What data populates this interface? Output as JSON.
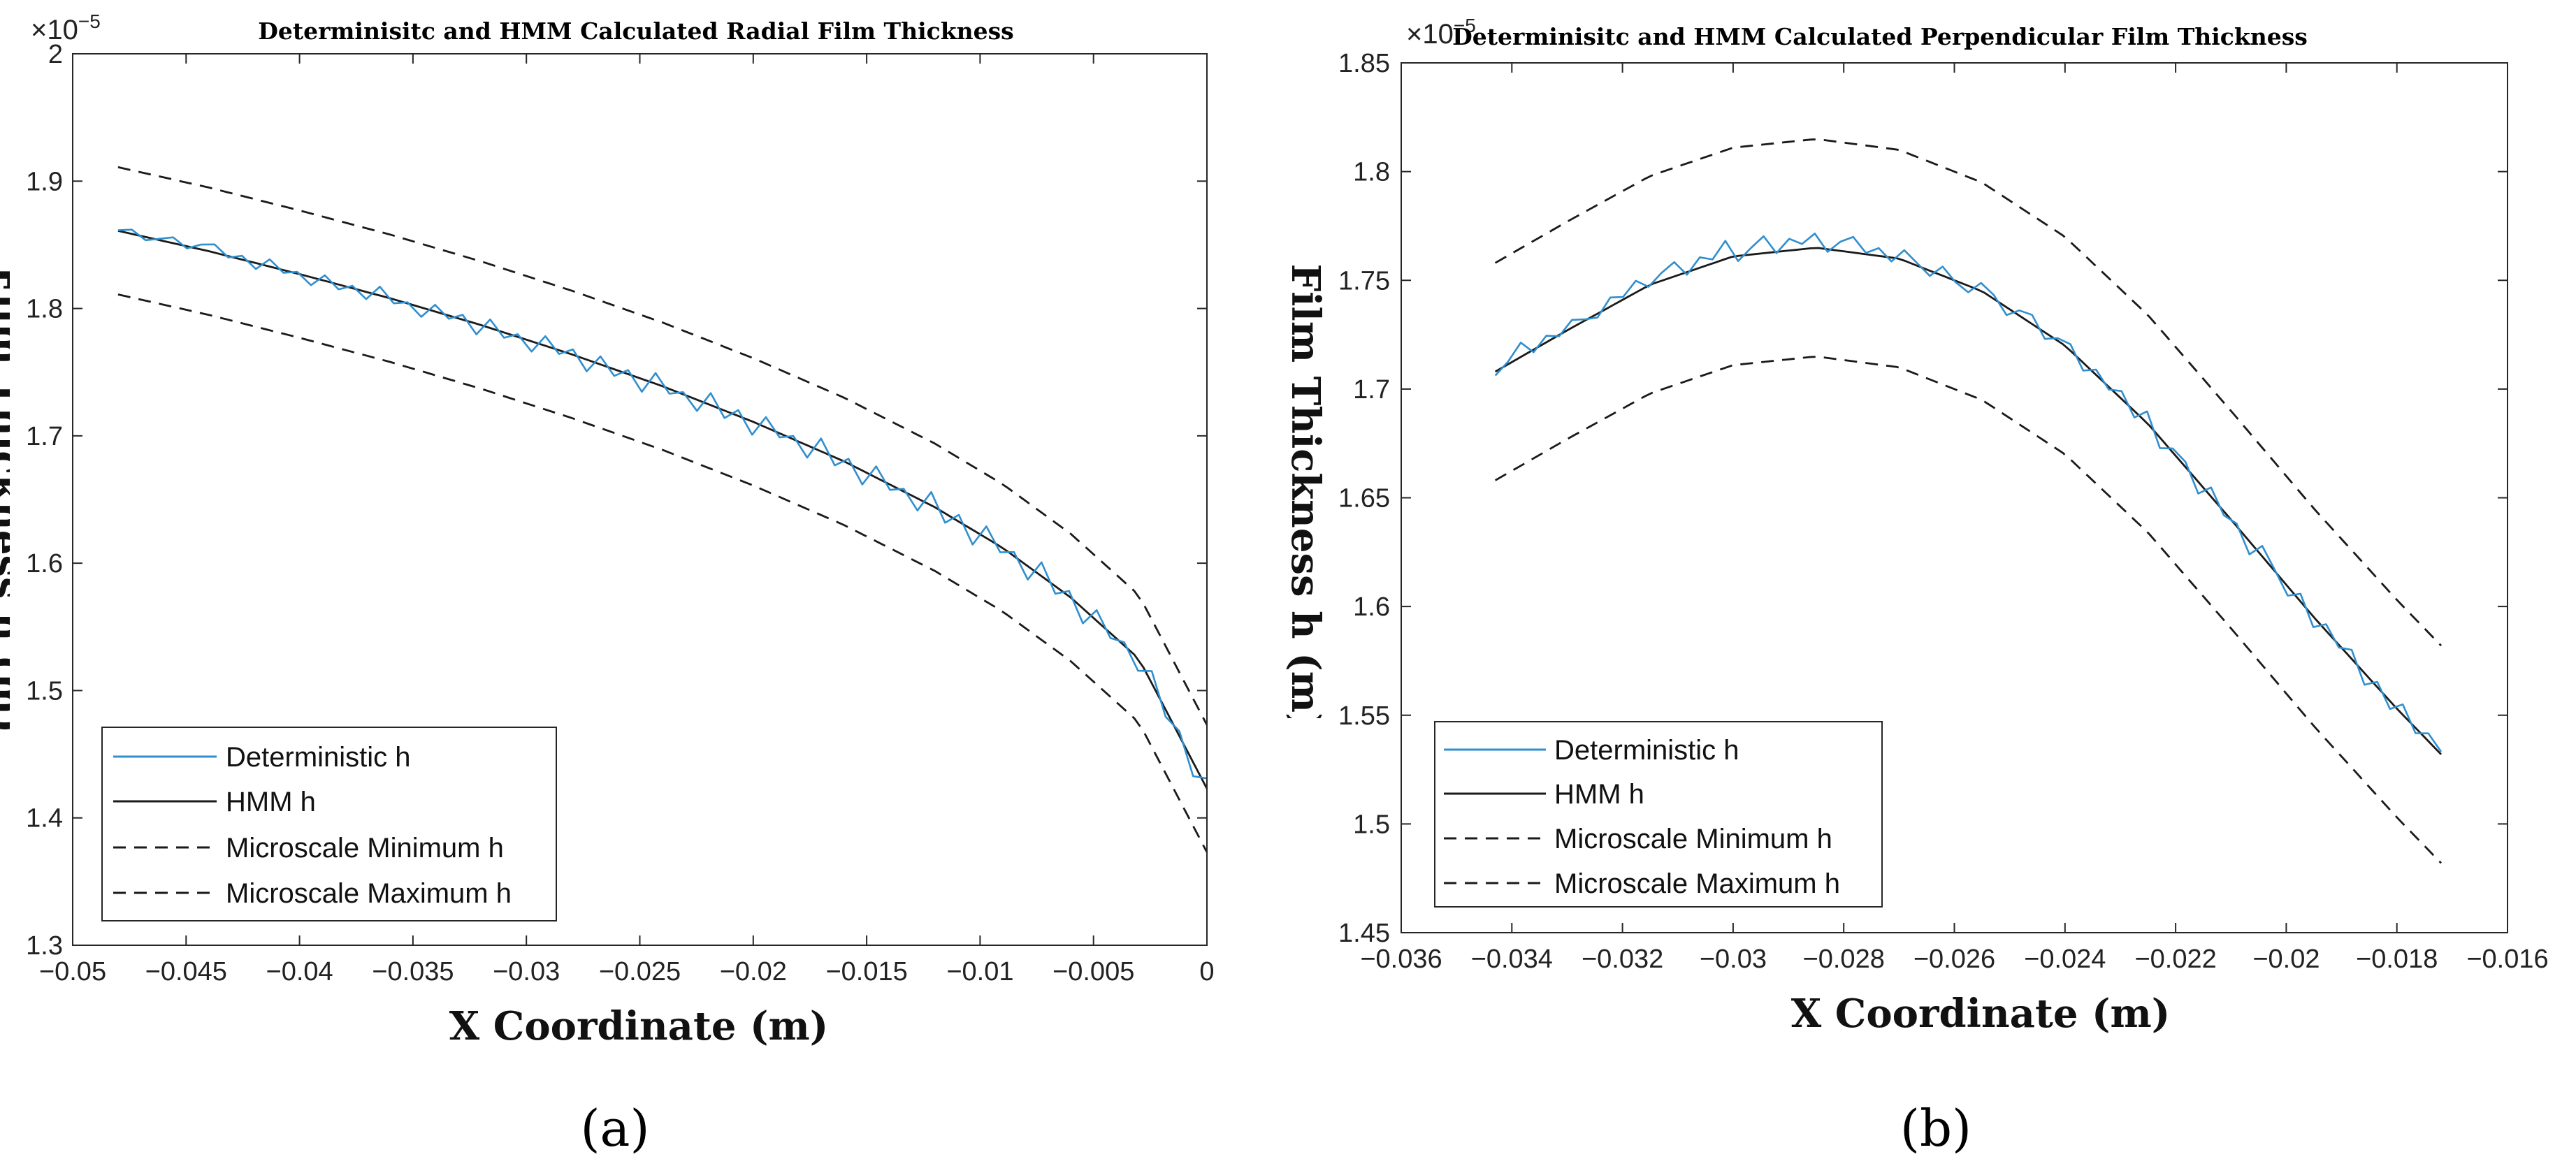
{
  "chart_data": [
    {
      "type": "line",
      "panel_label": "(a)",
      "title": "Determinisitc and HMM Calculated Radial Film Thickness",
      "xlabel": "X Coordinate (m)",
      "ylabel": "Film Thickness h (m)",
      "xlim": [
        -0.05,
        0
      ],
      "ylim": [
        1.3e-05,
        2e-05
      ],
      "y_exponent_label": "×10",
      "y_exponent_power": "−5",
      "xticks": [
        -0.05,
        -0.045,
        -0.04,
        -0.035,
        -0.03,
        -0.025,
        -0.02,
        -0.015,
        -0.01,
        -0.005,
        0
      ],
      "xtick_labels": [
        "−0.05",
        "−0.045",
        "−0.04",
        "−0.035",
        "−0.03",
        "−0.025",
        "−0.02",
        "−0.015",
        "−0.01",
        "−0.005",
        "0"
      ],
      "yticks": [
        1.3e-05,
        1.4e-05,
        1.5e-05,
        1.6e-05,
        1.7e-05,
        1.8e-05,
        1.9e-05,
        2e-05
      ],
      "ytick_labels": [
        "1.3",
        "1.4",
        "1.5",
        "1.6",
        "1.7",
        "1.8",
        "1.9",
        "2"
      ],
      "legend_position": "bottom-left",
      "series": [
        {
          "name": "Deterministic h",
          "color": "#2f8fcf",
          "style": "solid",
          "oscillating": true,
          "ref": "HMM h",
          "noise": [
            0.02,
            0.16,
            -0.12,
            0.05,
            0.22,
            -0.08,
            0.18,
            0.31,
            -0.05,
            0.14,
            -0.22,
            0.27,
            -0.1,
            0.06,
            -0.3,
            0.21,
            -0.18,
            0.09,
            -0.27,
            0.33,
            -0.15,
            0.04,
            -0.35,
            0.25,
            -0.12,
            0.18,
            -0.4,
            0.32,
            -0.2,
            0.1,
            -0.38,
            0.36,
            -0.14,
            0.2,
            -0.44,
            0.3,
            -0.25,
            0.15,
            -0.48,
            0.4,
            -0.18,
            0.08,
            -0.42,
            0.45,
            -0.28,
            0.22,
            -0.5,
            0.38,
            -0.15,
            0.12,
            -0.46,
            0.48,
            -0.3,
            0.18,
            -0.52,
            0.42,
            -0.2,
            0.1,
            -0.45,
            0.5,
            -0.35,
            0.25,
            -0.55,
            0.44,
            -0.22,
            0.15,
            -0.5,
            0.52,
            -0.28,
            0.2,
            -0.56,
            0.4,
            -0.18,
            0.12,
            -0.48,
            0.46,
            -0.26,
            0.18,
            -0.52,
            0.38
          ]
        },
        {
          "name": "HMM h",
          "color": "#1a1a1a",
          "style": "solid",
          "x": [
            -0.048,
            -0.044,
            -0.04,
            -0.036,
            -0.032,
            -0.028,
            -0.024,
            -0.02,
            -0.016,
            -0.012,
            -0.009,
            -0.006,
            -0.003,
            0.0
          ],
          "y": [
            1.861e-05,
            1.845e-05,
            1.827e-05,
            1.808e-05,
            1.787e-05,
            1.764e-05,
            1.739e-05,
            1.711e-05,
            1.68e-05,
            1.644e-05,
            1.612e-05,
            1.573e-05,
            1.525e-05,
            1.423e-05
          ]
        },
        {
          "name": "Microscale Minimum h",
          "color": "#1a1a1a",
          "style": "dashed",
          "x": [
            -0.048,
            -0.044,
            -0.04,
            -0.036,
            -0.032,
            -0.028,
            -0.024,
            -0.02,
            -0.016,
            -0.012,
            -0.009,
            -0.006,
            -0.003,
            0.0
          ],
          "y": [
            1.811e-05,
            1.795e-05,
            1.777e-05,
            1.758e-05,
            1.737e-05,
            1.714e-05,
            1.689e-05,
            1.661e-05,
            1.63e-05,
            1.594e-05,
            1.562e-05,
            1.523e-05,
            1.475e-05,
            1.373e-05
          ]
        },
        {
          "name": "Microscale Maximum h",
          "color": "#1a1a1a",
          "style": "dashed",
          "x": [
            -0.048,
            -0.044,
            -0.04,
            -0.036,
            -0.032,
            -0.028,
            -0.024,
            -0.02,
            -0.016,
            -0.012,
            -0.009,
            -0.006,
            -0.003,
            0.0
          ],
          "y": [
            1.911e-05,
            1.895e-05,
            1.877e-05,
            1.858e-05,
            1.837e-05,
            1.814e-05,
            1.789e-05,
            1.761e-05,
            1.73e-05,
            1.694e-05,
            1.662e-05,
            1.623e-05,
            1.575e-05,
            1.473e-05
          ]
        }
      ]
    },
    {
      "type": "line",
      "panel_label": "(b)",
      "title": "Determinisitc and HMM Calculated Perpendicular Film Thickness",
      "xlabel": "X Coordinate (m)",
      "ylabel": "Film Thickness h (m)",
      "xlim": [
        -0.036,
        -0.016
      ],
      "ylim": [
        1.45e-05,
        1.85e-05
      ],
      "y_exponent_label": "×10",
      "y_exponent_power": "−5",
      "xticks": [
        -0.036,
        -0.034,
        -0.032,
        -0.03,
        -0.028,
        -0.026,
        -0.024,
        -0.022,
        -0.02,
        -0.018,
        -0.016
      ],
      "xtick_labels": [
        "−0.036",
        "−0.034",
        "−0.032",
        "−0.03",
        "−0.028",
        "−0.026",
        "−0.024",
        "−0.022",
        "−0.02",
        "−0.018",
        "−0.016"
      ],
      "yticks": [
        1.45e-05,
        1.5e-05,
        1.55e-05,
        1.6e-05,
        1.65e-05,
        1.7e-05,
        1.75e-05,
        1.8e-05,
        1.85e-05
      ],
      "ytick_labels": [
        "1.45",
        "1.5",
        "1.55",
        "1.6",
        "1.65",
        "1.7",
        "1.75",
        "1.8",
        "1.85"
      ],
      "legend_position": "bottom-left",
      "series": [
        {
          "name": "Deterministic h",
          "color": "#2f8fcf",
          "style": "solid",
          "oscillating": true,
          "ref": "HMM h",
          "noise": [
            -0.15,
            0.1,
            0.55,
            -0.1,
            0.25,
            -0.05,
            0.3,
            0.05,
            -0.15,
            0.35,
            0.1,
            0.45,
            -0.05,
            0.3,
            0.55,
            -0.1,
            0.4,
            0.15,
            0.7,
            -0.2,
            0.25,
            0.65,
            -0.05,
            0.45,
            0.2,
            0.55,
            -0.1,
            0.35,
            0.6,
            0.05,
            0.3,
            -0.15,
            0.4,
            0.1,
            -0.2,
            0.35,
            -0.05,
            -0.25,
            0.3,
            0.15,
            -0.3,
            0.2,
            0.35,
            -0.25,
            0.1,
            0.25,
            -0.3,
            0.2,
            -0.1,
            0.3,
            -0.25,
            0.45,
            -0.4,
            0.15,
            0.2,
            -0.45,
            0.35,
            -0.15,
            0.1,
            -0.5,
            0.4,
            0.05,
            -0.35,
            0.3,
            -0.4,
            0.25,
            -0.1,
            0.35,
            -0.45,
            0.2,
            -0.3,
            0.4,
            -0.2,
            0.3,
            0.1
          ]
        },
        {
          "name": "HMM h",
          "color": "#1a1a1a",
          "style": "solid",
          "x": [
            -0.0343,
            -0.033,
            -0.0315,
            -0.03,
            -0.0285,
            -0.027,
            -0.0255,
            -0.024,
            -0.0225,
            -0.021,
            -0.0195,
            -0.018,
            -0.0172
          ],
          "y": [
            1.708e-05,
            1.727e-05,
            1.748e-05,
            1.761e-05,
            1.765e-05,
            1.76e-05,
            1.745e-05,
            1.72e-05,
            1.684e-05,
            1.64e-05,
            1.595e-05,
            1.553e-05,
            1.532e-05
          ]
        },
        {
          "name": "Microscale Minimum h",
          "color": "#1a1a1a",
          "style": "dashed",
          "x": [
            -0.0343,
            -0.033,
            -0.0315,
            -0.03,
            -0.0285,
            -0.027,
            -0.0255,
            -0.024,
            -0.0225,
            -0.021,
            -0.0195,
            -0.018,
            -0.0172
          ],
          "y": [
            1.658e-05,
            1.677e-05,
            1.698e-05,
            1.711e-05,
            1.715e-05,
            1.71e-05,
            1.695e-05,
            1.67e-05,
            1.634e-05,
            1.59e-05,
            1.545e-05,
            1.503e-05,
            1.482e-05
          ]
        },
        {
          "name": "Microscale Maximum h",
          "color": "#1a1a1a",
          "style": "dashed",
          "x": [
            -0.0343,
            -0.033,
            -0.0315,
            -0.03,
            -0.0285,
            -0.027,
            -0.0255,
            -0.024,
            -0.0225,
            -0.021,
            -0.0195,
            -0.018,
            -0.0172
          ],
          "y": [
            1.758e-05,
            1.777e-05,
            1.798e-05,
            1.811e-05,
            1.815e-05,
            1.81e-05,
            1.795e-05,
            1.77e-05,
            1.734e-05,
            1.69e-05,
            1.645e-05,
            1.603e-05,
            1.582e-05
          ]
        }
      ]
    }
  ]
}
